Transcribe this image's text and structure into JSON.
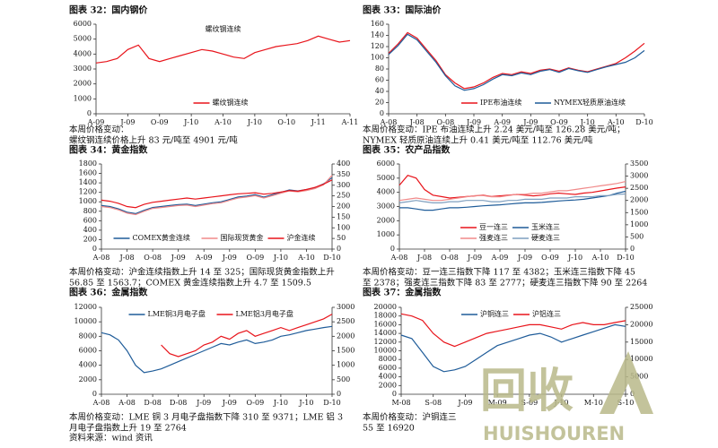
{
  "chart_data": [
    {
      "type": "line",
      "title": "图表 32：国内钢价",
      "subtitle": "螺纹钢连续",
      "legend": "lower center",
      "categories": [
        "A-09",
        null,
        null,
        "J-09",
        null,
        null,
        "O-09",
        null,
        null,
        "J-10",
        null,
        null,
        "A-10",
        null,
        null,
        "J-10",
        null,
        null,
        "O-10",
        null,
        null,
        "J-11",
        null,
        null,
        "A-11"
      ],
      "ylim": [
        0,
        6000
      ],
      "yticks": [
        0,
        1000,
        2000,
        3000,
        4000,
        5000,
        6000
      ],
      "series": [
        {
          "name": "螺纹钢连续",
          "color": "#e8141b",
          "values": [
            3400,
            3500,
            3700,
            4300,
            4600,
            3700,
            3500,
            3700,
            3900,
            4100,
            4300,
            4200,
            4000,
            3800,
            3700,
            4100,
            4300,
            4500,
            4600,
            4700,
            4900,
            5200,
            5000,
            4800,
            4900
          ]
        }
      ],
      "notes": [
        "本周价格变动：",
        "螺纹钢连续价格上升 83 元/吨至 4901 元/吨"
      ]
    },
    {
      "type": "line",
      "title": "图表 33：国际油价",
      "legend": "lower right",
      "categories": [
        "A-08",
        null,
        null,
        "J-08",
        null,
        null,
        "O-08",
        null,
        null,
        "J-09",
        null,
        null,
        "A-09",
        null,
        null,
        "J-09",
        null,
        null,
        "O-09",
        null,
        null,
        "J-10",
        null,
        null,
        "A-10",
        null,
        null,
        "D-10"
      ],
      "ylim": [
        0,
        160
      ],
      "yticks": [
        0,
        20,
        40,
        60,
        80,
        100,
        120,
        140,
        160
      ],
      "series": [
        {
          "name": "IPE布油连续",
          "color": "#e8141b",
          "values": [
            108,
            125,
            145,
            135,
            115,
            95,
            70,
            55,
            45,
            48,
            55,
            65,
            72,
            70,
            75,
            72,
            78,
            80,
            76,
            82,
            78,
            75,
            80,
            85,
            90,
            100,
            112,
            126
          ]
        },
        {
          "name": "NYMEX轻质原油连续",
          "color": "#1f5c99",
          "values": [
            106,
            122,
            142,
            132,
            112,
            92,
            68,
            50,
            42,
            45,
            52,
            62,
            70,
            68,
            73,
            70,
            76,
            79,
            74,
            81,
            77,
            74,
            79,
            84,
            88,
            92,
            100,
            113
          ]
        }
      ],
      "notes": [
        "本周价格变动：IPE 布油连续上升 2.24 美元/吨至 126.28 美元/吨；",
        "NYMEX 轻质原油连续上升 0.41 美元/吨至 112.76 美元/吨"
      ]
    },
    {
      "type": "line",
      "title": "图表 34：黄金指数",
      "legend": "lower center",
      "categories": [
        "A-08",
        null,
        null,
        "J-08",
        null,
        null,
        "O-08",
        null,
        null,
        "J-09",
        null,
        null,
        "A-09",
        null,
        null,
        "J-09",
        null,
        null,
        "O-09",
        null,
        null,
        "J-10",
        null,
        null,
        "A-10",
        null,
        null,
        "D-10"
      ],
      "ylim": [
        0,
        1800
      ],
      "yticks": [
        0,
        200,
        400,
        600,
        800,
        1000,
        1200,
        1400,
        1600,
        1800
      ],
      "y2lim": [
        0,
        400
      ],
      "y2ticks": [
        0,
        50,
        100,
        150,
        200,
        250,
        300,
        350,
        400
      ],
      "series": [
        {
          "name": "COMEX黄金连续",
          "color": "#1f5c99",
          "values": [
            920,
            900,
            850,
            780,
            750,
            820,
            880,
            900,
            920,
            940,
            950,
            920,
            950,
            980,
            1000,
            1050,
            1100,
            1120,
            1150,
            1100,
            1150,
            1200,
            1250,
            1230,
            1260,
            1300,
            1380,
            1510
          ]
        },
        {
          "name": "国际现货黄金",
          "color": "#f08a8a",
          "values": [
            900,
            880,
            830,
            760,
            730,
            800,
            860,
            880,
            900,
            920,
            930,
            900,
            930,
            960,
            980,
            1030,
            1080,
            1100,
            1130,
            1080,
            1130,
            1180,
            1230,
            1210,
            1240,
            1280,
            1360,
            1560
          ]
        },
        {
          "name": "沪金连续",
          "color": "#e8141b",
          "axis": "y2",
          "values": [
            230,
            225,
            215,
            200,
            195,
            210,
            220,
            225,
            230,
            235,
            240,
            235,
            240,
            245,
            250,
            255,
            260,
            262,
            265,
            258,
            262,
            268,
            275,
            272,
            280,
            290,
            305,
            325
          ]
        }
      ],
      "notes": [
        "本周价格变动：沪金连续指数上升 14 至 325；国际现货黄金指数上升",
        "56.85 至 1563.7；COMEX 黄金连续指数上升 4.7 至 1509.5"
      ]
    },
    {
      "type": "line",
      "title": "图表 35：农产品指数",
      "legend": "lower center",
      "categories": [
        "A-08",
        null,
        null,
        "J-08",
        null,
        null,
        "O-08",
        null,
        null,
        "J-09",
        null,
        null,
        "A-09",
        null,
        null,
        "J-09",
        null,
        null,
        "O-09",
        null,
        null,
        "J-10",
        null,
        null,
        "A-10",
        null,
        null,
        "D-10"
      ],
      "ylim": [
        0,
        6000
      ],
      "yticks": [
        0,
        1000,
        2000,
        3000,
        4000,
        5000,
        6000
      ],
      "y2lim": [
        0,
        3500
      ],
      "y2ticks": [
        0,
        500,
        1000,
        1500,
        2000,
        2500,
        3000,
        3500
      ],
      "series": [
        {
          "name": "豆一连三",
          "color": "#e8141b",
          "values": [
            4500,
            5200,
            5000,
            4200,
            3800,
            3700,
            3600,
            3650,
            3700,
            3750,
            3800,
            3700,
            3750,
            3800,
            3850,
            3800,
            3750,
            3800,
            3900,
            3950,
            3900,
            3850,
            3950,
            4000,
            4100,
            4200,
            4300,
            4382
          ]
        },
        {
          "name": "玉米连三",
          "color": "#1f5c99",
          "axis": "y2",
          "values": [
            1700,
            1700,
            1650,
            1600,
            1600,
            1650,
            1700,
            1700,
            1720,
            1750,
            1780,
            1800,
            1820,
            1850,
            1880,
            1900,
            1900,
            1920,
            1950,
            1980,
            2000,
            2020,
            2050,
            2100,
            2150,
            2200,
            2300,
            2378
          ]
        },
        {
          "name": "强麦连三",
          "color": "#f08a8a",
          "axis": "y2",
          "values": [
            2000,
            2050,
            2100,
            2050,
            2000,
            2000,
            2050,
            2100,
            2150,
            2200,
            2200,
            2150,
            2150,
            2200,
            2250,
            2250,
            2300,
            2300,
            2350,
            2400,
            2400,
            2450,
            2500,
            2550,
            2600,
            2650,
            2700,
            2777
          ]
        },
        {
          "name": "硬麦连三",
          "color": "#7f9fbf",
          "axis": "y2",
          "values": [
            1900,
            1950,
            2000,
            1950,
            1900,
            1900,
            1950,
            1950,
            2000,
            2000,
            2000,
            1950,
            1950,
            2000,
            2000,
            2050,
            2050,
            2050,
            2100,
            2100,
            2100,
            2150,
            2150,
            2150,
            2200,
            2200,
            2250,
            2264
          ]
        }
      ],
      "notes": [
        "本周价格变动：豆一连三指数下降 117 至 4382；玉米连三指数下降 45",
        "至 2378；强麦连三指数下降 83 至 2777；硬麦连三指数下降 90 至 2264"
      ]
    },
    {
      "type": "line",
      "title": "图表 36：金属指数",
      "legend": "upper center",
      "categories": [
        "A-08",
        null,
        null,
        "A-08",
        null,
        null,
        "D-08",
        null,
        null,
        "D-08",
        null,
        null,
        "J-09",
        null,
        null,
        "J-09",
        null,
        null,
        "O-09",
        null,
        null,
        "J-10",
        null,
        null,
        "J-10",
        null,
        null,
        "D-10"
      ],
      "ylim": [
        0,
        12000
      ],
      "yticks": [
        0,
        2000,
        4000,
        6000,
        8000,
        10000,
        12000
      ],
      "y2lim": [
        0,
        3000
      ],
      "y2ticks": [
        0,
        500,
        1000,
        1500,
        2000,
        2500,
        3000
      ],
      "series": [
        {
          "name": "LME铜3月电子盘",
          "color": "#1f5c99",
          "values": [
            8500,
            8200,
            7500,
            6000,
            4000,
            3000,
            3200,
            3500,
            4000,
            4500,
            5000,
            5500,
            6000,
            6500,
            7000,
            6800,
            7200,
            7500,
            7000,
            7200,
            7500,
            8000,
            8200,
            8500,
            8800,
            9000,
            9200,
            9371
          ]
        },
        {
          "name": "LME铝3月电子盘",
          "color": "#e8141b",
          "axis": "y2",
          "values": [
            null,
            null,
            null,
            null,
            null,
            null,
            null,
            1700,
            1400,
            1300,
            1400,
            1500,
            1700,
            1800,
            2000,
            1900,
            2100,
            2200,
            2000,
            2100,
            2200,
            2300,
            2200,
            2300,
            2400,
            2500,
            2600,
            2764
          ]
        }
      ],
      "notes": [
        "本周价格变动：LME 铜 3 月电子盘指数下降 310 至 9371；LME 铝 3",
        "月电子盘指数上升 19 至 2764"
      ]
    },
    {
      "type": "line",
      "title": "图表 37：金属指数",
      "legend": "upper center",
      "categories": [
        "M-08",
        null,
        null,
        "S-08",
        null,
        null,
        "J-09",
        null,
        null,
        "M-09",
        null,
        null,
        "S-09",
        null,
        null,
        "J-10",
        null,
        null,
        "M-10",
        null,
        null,
        "S-10"
      ],
      "ylim": [
        0,
        20000
      ],
      "yticks": [
        0,
        2000,
        4000,
        6000,
        8000,
        10000,
        12000,
        14000,
        16000,
        18000,
        20000
      ],
      "y2lim": [
        0,
        25000
      ],
      "y2ticks": [
        0,
        5000,
        10000,
        15000,
        20000,
        25000
      ],
      "series": [
        {
          "name": "沪铜连三",
          "color": "#1f5c99",
          "axis": "y2",
          "values": [
            17000,
            16000,
            12000,
            8000,
            6500,
            7000,
            8000,
            10000,
            12000,
            14000,
            15000,
            16000,
            17000,
            17500,
            16500,
            15000,
            16000,
            17000,
            18000,
            19000,
            20000,
            19500
          ]
        },
        {
          "name": "沪铝连三",
          "color": "#e8141b",
          "values": [
            18500,
            18000,
            17000,
            14000,
            12000,
            11000,
            12000,
            13000,
            14000,
            14500,
            15000,
            15500,
            16000,
            16000,
            15500,
            15000,
            16000,
            16500,
            16000,
            16000,
            16500,
            16920
          ]
        }
      ],
      "notes": [
        "本周价格变动：沪铜连三",
        "55 至 16920"
      ]
    }
  ],
  "source": "资料来源：wind 资讯",
  "watermark": {
    "logo": "回收",
    "text": "HUISHOUREN"
  }
}
